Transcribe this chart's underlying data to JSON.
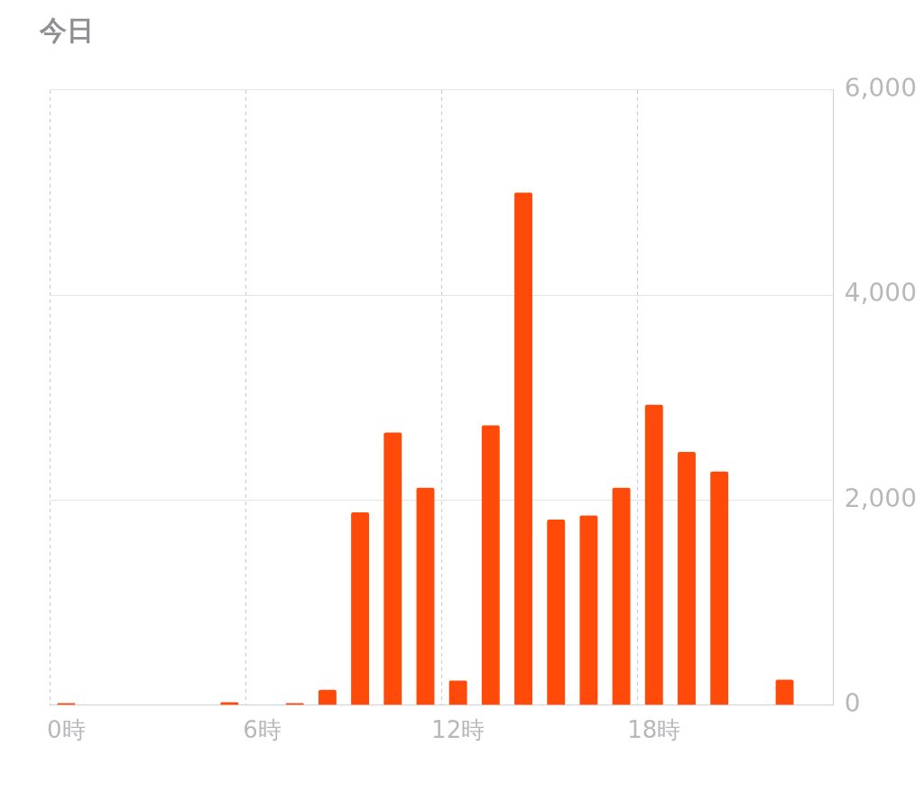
{
  "chart_data": {
    "type": "bar",
    "title": "今日",
    "categories": [
      "0時",
      null,
      null,
      null,
      null,
      null,
      "6時",
      null,
      null,
      null,
      null,
      null,
      "12時",
      null,
      null,
      null,
      null,
      null,
      "18時",
      null,
      null,
      null,
      null,
      null
    ],
    "values": [
      20,
      0,
      0,
      0,
      0,
      30,
      0,
      20,
      150,
      1880,
      2660,
      2120,
      240,
      2730,
      5000,
      1810,
      1850,
      2120,
      2930,
      2470,
      2280,
      0,
      250,
      0
    ],
    "color": "#ff4a0a",
    "ylim": [
      0,
      6000
    ],
    "yticks": [
      {
        "value": 0,
        "label": "0"
      },
      {
        "value": 2000,
        "label": "2,000"
      },
      {
        "value": 4000,
        "label": "4,000"
      },
      {
        "value": 6000,
        "label": "6,000"
      }
    ],
    "grid": true,
    "legend": false
  }
}
